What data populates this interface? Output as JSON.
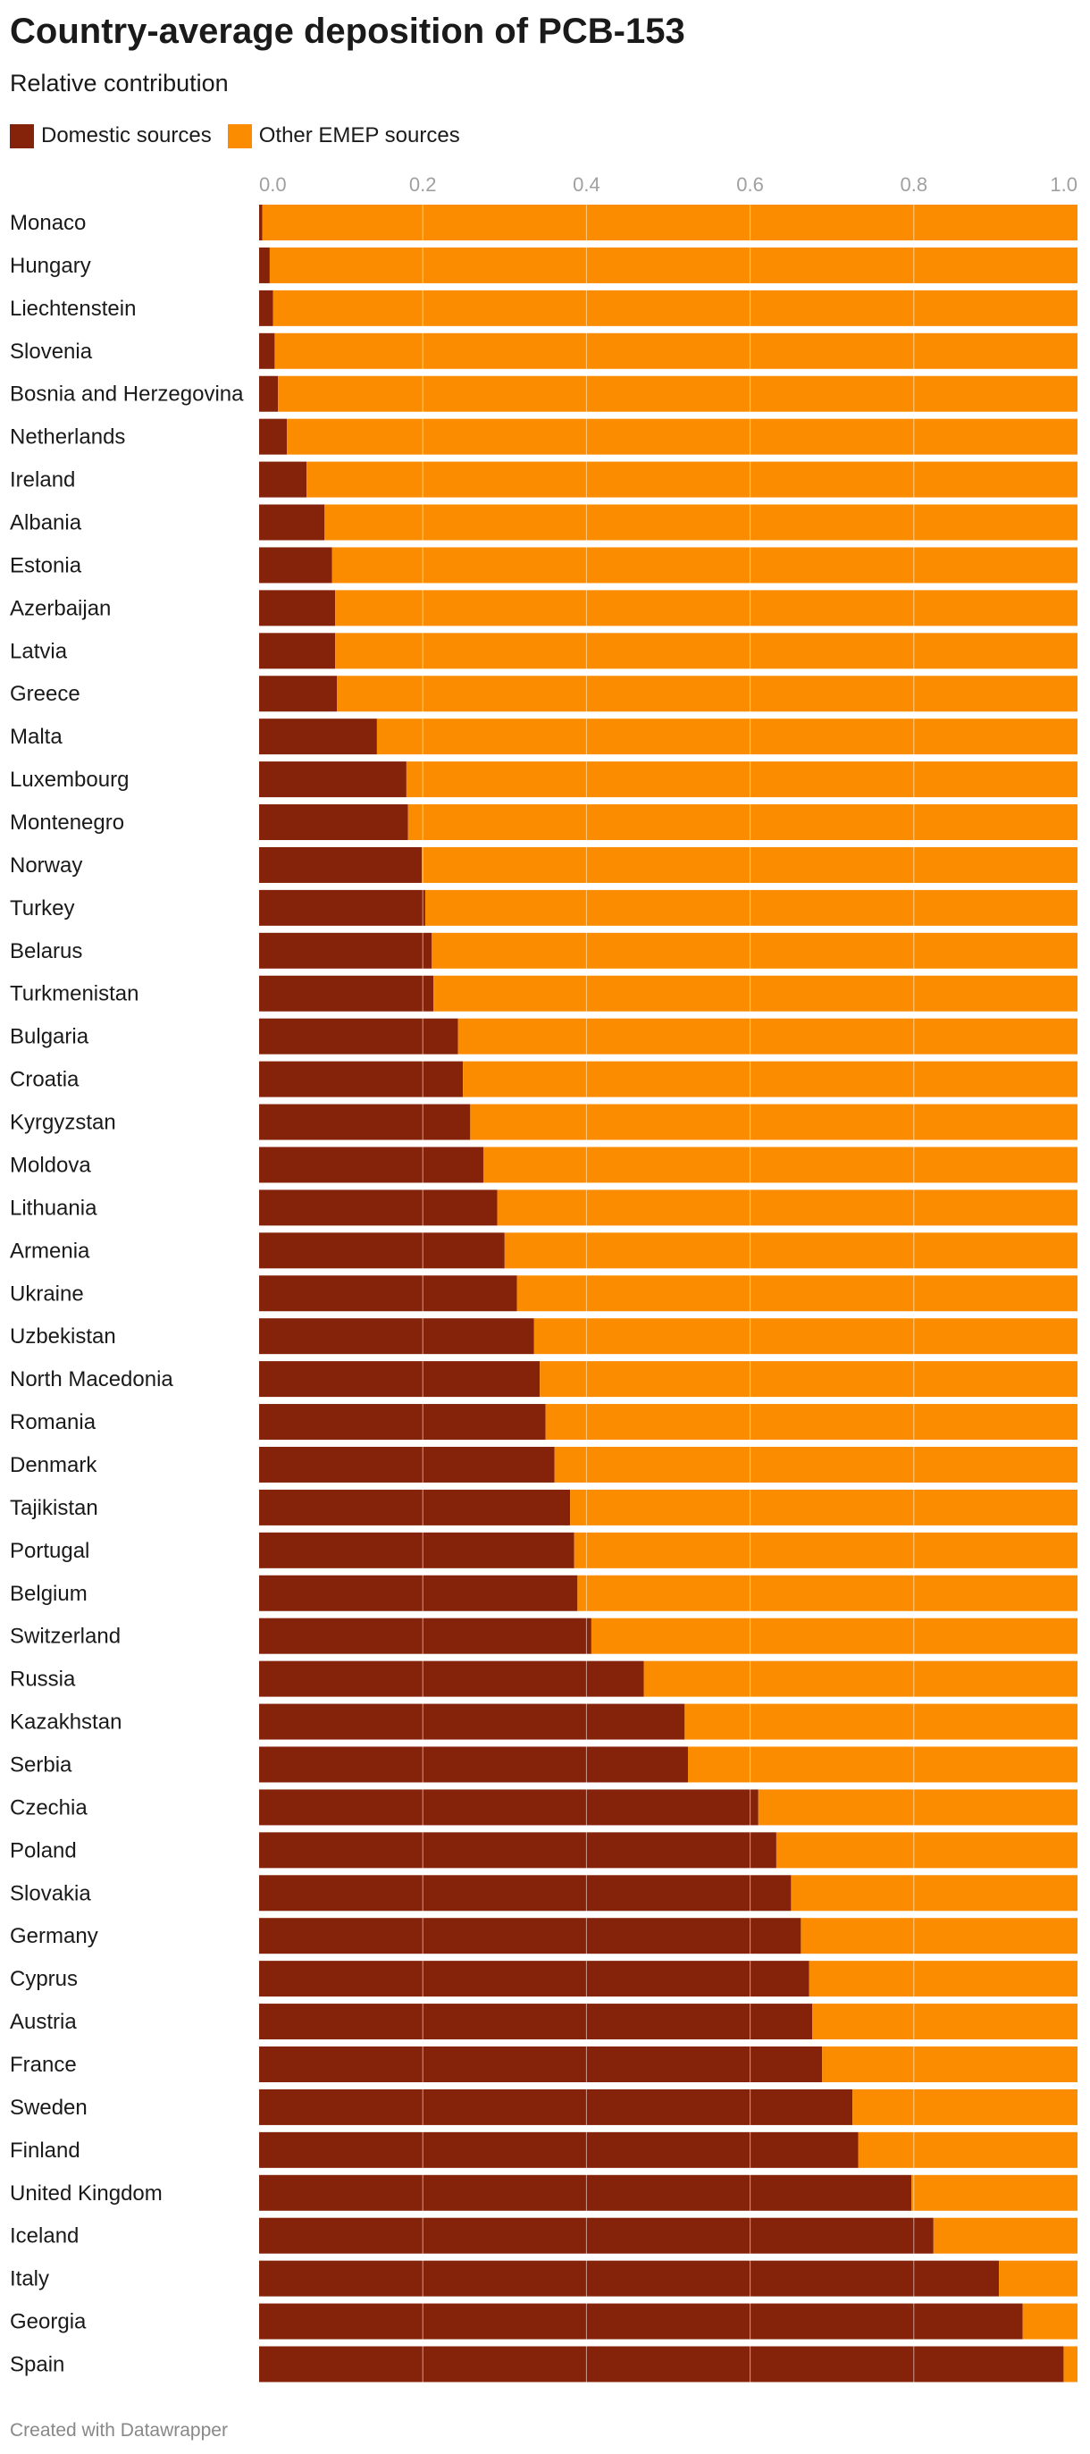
{
  "header": {
    "title": "Country-average deposition of PCB-153",
    "subtitle": "Relative contribution"
  },
  "legend": {
    "domestic_label": "Domestic sources",
    "other_label": "Other EMEP sources"
  },
  "colors": {
    "domestic": "#85230a",
    "other": "#fb8c00",
    "gridline": "#ffffff",
    "tick_text": "#a0a0a0",
    "label_text": "#1a1a1a"
  },
  "footer": {
    "credit": "Created with Datawrapper"
  },
  "chart_data": {
    "type": "bar",
    "orientation": "horizontal",
    "stacked": true,
    "title": "Country-average deposition of PCB-153",
    "subtitle": "Relative contribution",
    "xlim": [
      0,
      1
    ],
    "x_ticks": [
      "0.0",
      "0.2",
      "0.4",
      "0.6",
      "0.8",
      "1.0"
    ],
    "legend_position": "top-left",
    "categories": [
      "Monaco",
      "Hungary",
      "Liechtenstein",
      "Slovenia",
      "Bosnia and Herzegovina",
      "Netherlands",
      "Ireland",
      "Albania",
      "Estonia",
      "Azerbaijan",
      "Latvia",
      "Greece",
      "Malta",
      "Luxembourg",
      "Montenegro",
      "Norway",
      "Turkey",
      "Belarus",
      "Turkmenistan",
      "Bulgaria",
      "Croatia",
      "Kyrgyzstan",
      "Moldova",
      "Lithuania",
      "Armenia",
      "Ukraine",
      "Uzbekistan",
      "North Macedonia",
      "Romania",
      "Denmark",
      "Tajikistan",
      "Portugal",
      "Belgium",
      "Switzerland",
      "Russia",
      "Kazakhstan",
      "Serbia",
      "Czechia",
      "Poland",
      "Slovakia",
      "Germany",
      "Cyprus",
      "Austria",
      "France",
      "Sweden",
      "Finland",
      "United Kingdom",
      "Iceland",
      "Italy",
      "Georgia",
      "Spain"
    ],
    "series": [
      {
        "name": "Domestic sources",
        "values": [
          0.004,
          0.013,
          0.017,
          0.019,
          0.023,
          0.034,
          0.058,
          0.08,
          0.089,
          0.093,
          0.093,
          0.095,
          0.144,
          0.18,
          0.182,
          0.199,
          0.203,
          0.211,
          0.213,
          0.243,
          0.249,
          0.258,
          0.274,
          0.291,
          0.3,
          0.315,
          0.336,
          0.343,
          0.35,
          0.361,
          0.38,
          0.385,
          0.389,
          0.406,
          0.47,
          0.52,
          0.524,
          0.61,
          0.632,
          0.65,
          0.662,
          0.672,
          0.676,
          0.688,
          0.725,
          0.732,
          0.797,
          0.824,
          0.904,
          0.933,
          0.983
        ]
      },
      {
        "name": "Other EMEP sources",
        "values": [
          0.996,
          0.987,
          0.983,
          0.981,
          0.977,
          0.966,
          0.942,
          0.92,
          0.911,
          0.907,
          0.907,
          0.905,
          0.856,
          0.82,
          0.818,
          0.801,
          0.797,
          0.789,
          0.787,
          0.757,
          0.751,
          0.742,
          0.726,
          0.709,
          0.7,
          0.685,
          0.664,
          0.657,
          0.65,
          0.639,
          0.62,
          0.615,
          0.611,
          0.594,
          0.53,
          0.48,
          0.476,
          0.39,
          0.368,
          0.35,
          0.338,
          0.328,
          0.324,
          0.312,
          0.275,
          0.268,
          0.203,
          0.176,
          0.096,
          0.067,
          0.017
        ]
      }
    ]
  }
}
